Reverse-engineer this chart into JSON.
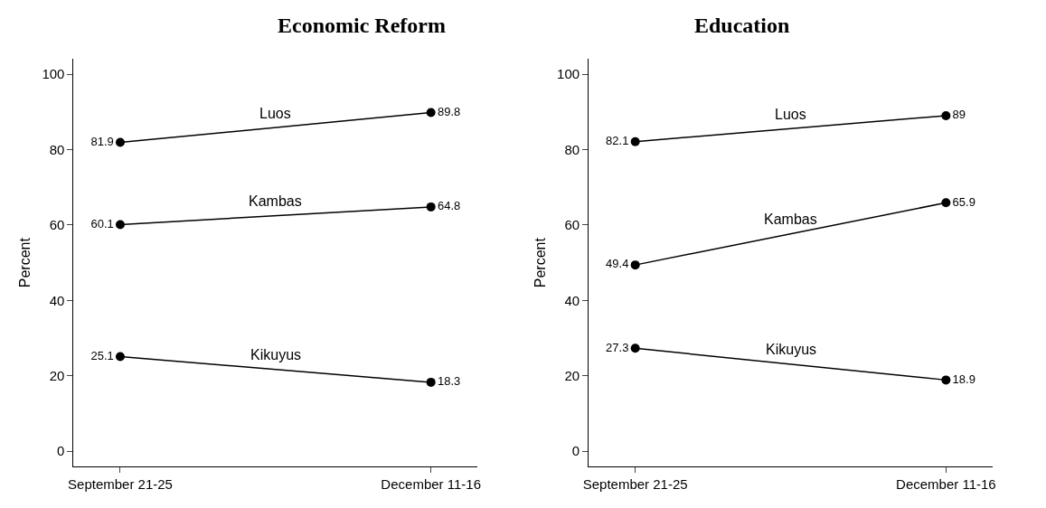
{
  "chart_data": [
    {
      "type": "line",
      "title": "Economic Reform",
      "ylabel": "Percent",
      "categories": [
        "September 21-25",
        "December 11-16"
      ],
      "ylim": [
        -4,
        104
      ],
      "yticks": [
        0,
        20,
        40,
        60,
        80,
        100
      ],
      "marker": "circle",
      "data_labels": true,
      "series": [
        {
          "name": "Luos",
          "color": "#000000",
          "values": [
            81.9,
            89.8
          ]
        },
        {
          "name": "Kambas",
          "color": "#000000",
          "values": [
            60.1,
            64.8
          ]
        },
        {
          "name": "Kikuyus",
          "color": "#000000",
          "values": [
            25.1,
            18.3
          ]
        }
      ]
    },
    {
      "type": "line",
      "title": "Education",
      "ylabel": "Percent",
      "categories": [
        "September 21-25",
        "December 11-16"
      ],
      "ylim": [
        -4,
        104
      ],
      "yticks": [
        0,
        20,
        40,
        60,
        80,
        100
      ],
      "marker": "circle",
      "data_labels": true,
      "series": [
        {
          "name": "Luos",
          "color": "#000000",
          "values": [
            82.1,
            89
          ]
        },
        {
          "name": "Kambas",
          "color": "#000000",
          "values": [
            49.4,
            65.9
          ]
        },
        {
          "name": "Kikuyus",
          "color": "#000000",
          "values": [
            27.3,
            18.9
          ]
        }
      ]
    }
  ]
}
